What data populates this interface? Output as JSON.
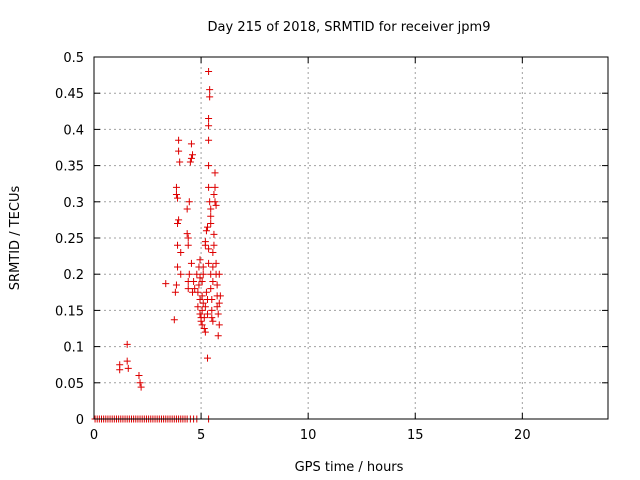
{
  "chart_data": {
    "type": "scatter",
    "title": "Day 215 of 2018, SRMTID for receiver jpm9",
    "xlabel": "GPS time / hours",
    "ylabel": "SRMTID / TECUs",
    "xlim": [
      0,
      24
    ],
    "ylim": [
      0,
      0.5
    ],
    "grid": true,
    "marker": "plus",
    "colors": {
      "series": "#dd0000",
      "grid": "#a0a0a0",
      "axis": "#000000"
    },
    "x_ticks": [
      0,
      5,
      10,
      15,
      20
    ],
    "x_tick_labels": [
      "0",
      "5",
      "10",
      "15",
      "20"
    ],
    "y_ticks": [
      0,
      0.05,
      0.1,
      0.15,
      0.2,
      0.25,
      0.3,
      0.35,
      0.4,
      0.45,
      0.5
    ],
    "y_tick_labels": [
      "0",
      "0.05",
      "0.1",
      "0.15",
      "0.2",
      "0.25",
      "0.3",
      "0.35",
      "0.4",
      "0.45",
      "0.5"
    ],
    "series": [
      {
        "name": "SRMTID",
        "points": [
          [
            0.05,
            0
          ],
          [
            0.15,
            0
          ],
          [
            0.25,
            0
          ],
          [
            0.35,
            0
          ],
          [
            0.45,
            0
          ],
          [
            0.55,
            0
          ],
          [
            0.65,
            0
          ],
          [
            0.75,
            0
          ],
          [
            0.85,
            0
          ],
          [
            0.95,
            0
          ],
          [
            1.05,
            0
          ],
          [
            1.15,
            0
          ],
          [
            1.25,
            0
          ],
          [
            1.35,
            0
          ],
          [
            1.45,
            0
          ],
          [
            1.55,
            0
          ],
          [
            1.65,
            0
          ],
          [
            1.75,
            0
          ],
          [
            1.85,
            0
          ],
          [
            1.95,
            0
          ],
          [
            2.05,
            0
          ],
          [
            2.15,
            0
          ],
          [
            2.25,
            0
          ],
          [
            2.35,
            0
          ],
          [
            2.45,
            0
          ],
          [
            2.55,
            0
          ],
          [
            2.65,
            0
          ],
          [
            2.75,
            0
          ],
          [
            2.85,
            0
          ],
          [
            2.95,
            0
          ],
          [
            3.05,
            0
          ],
          [
            3.15,
            0
          ],
          [
            3.25,
            0
          ],
          [
            3.35,
            0
          ],
          [
            3.45,
            0
          ],
          [
            3.55,
            0
          ],
          [
            3.65,
            0
          ],
          [
            3.75,
            0
          ],
          [
            3.85,
            0
          ],
          [
            3.95,
            0
          ],
          [
            4.05,
            0
          ],
          [
            4.15,
            0
          ],
          [
            4.25,
            0
          ],
          [
            4.35,
            0
          ],
          [
            4.5,
            0
          ],
          [
            4.65,
            0
          ],
          [
            4.8,
            0
          ],
          [
            5.35,
            0
          ],
          [
            1.2,
            0.075
          ],
          [
            1.2,
            0.068
          ],
          [
            1.55,
            0.103
          ],
          [
            1.55,
            0.08
          ],
          [
            1.6,
            0.07
          ],
          [
            2.1,
            0.06
          ],
          [
            2.15,
            0.05
          ],
          [
            2.2,
            0.044
          ],
          [
            3.35,
            0.187
          ],
          [
            3.75,
            0.137
          ],
          [
            3.8,
            0.175
          ],
          [
            3.85,
            0.185
          ],
          [
            3.9,
            0.21
          ],
          [
            3.9,
            0.24
          ],
          [
            3.9,
            0.27
          ],
          [
            3.95,
            0.275
          ],
          [
            3.85,
            0.31
          ],
          [
            3.9,
            0.305
          ],
          [
            3.85,
            0.32
          ],
          [
            3.95,
            0.37
          ],
          [
            3.95,
            0.385
          ],
          [
            4.0,
            0.355
          ],
          [
            4.05,
            0.23
          ],
          [
            4.05,
            0.2
          ],
          [
            4.35,
            0.29
          ],
          [
            4.35,
            0.256
          ],
          [
            4.4,
            0.25
          ],
          [
            4.4,
            0.24
          ],
          [
            4.4,
            0.18
          ],
          [
            4.4,
            0.19
          ],
          [
            4.45,
            0.2
          ],
          [
            4.45,
            0.3
          ],
          [
            4.5,
            0.355
          ],
          [
            4.55,
            0.36
          ],
          [
            4.6,
            0.365
          ],
          [
            4.55,
            0.38
          ],
          [
            4.55,
            0.215
          ],
          [
            4.6,
            0.175
          ],
          [
            4.65,
            0.19
          ],
          [
            4.7,
            0.18
          ],
          [
            4.8,
            0.2
          ],
          [
            4.85,
            0.175
          ],
          [
            4.85,
            0.155
          ],
          [
            4.9,
            0.185
          ],
          [
            4.9,
            0.21
          ],
          [
            4.95,
            0.22
          ],
          [
            4.95,
            0.195
          ],
          [
            4.95,
            0.165
          ],
          [
            4.95,
            0.145
          ],
          [
            5.0,
            0.14
          ],
          [
            5.0,
            0.135
          ],
          [
            5.05,
            0.13
          ],
          [
            5.05,
            0.15
          ],
          [
            5.05,
            0.17
          ],
          [
            5.05,
            0.19
          ],
          [
            5.1,
            0.21
          ],
          [
            5.1,
            0.2
          ],
          [
            5.1,
            0.16
          ],
          [
            5.15,
            0.125
          ],
          [
            5.15,
            0.14
          ],
          [
            5.2,
            0.12
          ],
          [
            5.2,
            0.155
          ],
          [
            5.2,
            0.24
          ],
          [
            5.2,
            0.245
          ],
          [
            5.25,
            0.26
          ],
          [
            5.25,
            0.175
          ],
          [
            5.3,
            0.165
          ],
          [
            5.3,
            0.145
          ],
          [
            5.3,
            0.265
          ],
          [
            5.35,
            0.235
          ],
          [
            5.35,
            0.215
          ],
          [
            5.35,
            0.32
          ],
          [
            5.3,
            0.084
          ],
          [
            5.35,
            0.35
          ],
          [
            5.35,
            0.385
          ],
          [
            5.35,
            0.405
          ],
          [
            5.35,
            0.415
          ],
          [
            5.4,
            0.445
          ],
          [
            5.4,
            0.455
          ],
          [
            5.35,
            0.48
          ],
          [
            5.4,
            0.3
          ],
          [
            5.45,
            0.29
          ],
          [
            5.45,
            0.28
          ],
          [
            5.45,
            0.27
          ],
          [
            5.45,
            0.2
          ],
          [
            5.45,
            0.18
          ],
          [
            5.5,
            0.165
          ],
          [
            5.5,
            0.14
          ],
          [
            5.5,
            0.15
          ],
          [
            5.55,
            0.135
          ],
          [
            5.55,
            0.19
          ],
          [
            5.55,
            0.21
          ],
          [
            5.55,
            0.23
          ],
          [
            5.6,
            0.255
          ],
          [
            5.6,
            0.24
          ],
          [
            5.6,
            0.31
          ],
          [
            5.65,
            0.32
          ],
          [
            5.65,
            0.3
          ],
          [
            5.65,
            0.34
          ],
          [
            5.7,
            0.295
          ],
          [
            5.7,
            0.215
          ],
          [
            5.7,
            0.2
          ],
          [
            5.75,
            0.185
          ],
          [
            5.75,
            0.17
          ],
          [
            5.75,
            0.155
          ],
          [
            5.8,
            0.145
          ],
          [
            5.8,
            0.115
          ],
          [
            5.85,
            0.13
          ],
          [
            5.85,
            0.16
          ],
          [
            5.85,
            0.2
          ],
          [
            5.9,
            0.17
          ]
        ]
      }
    ]
  }
}
